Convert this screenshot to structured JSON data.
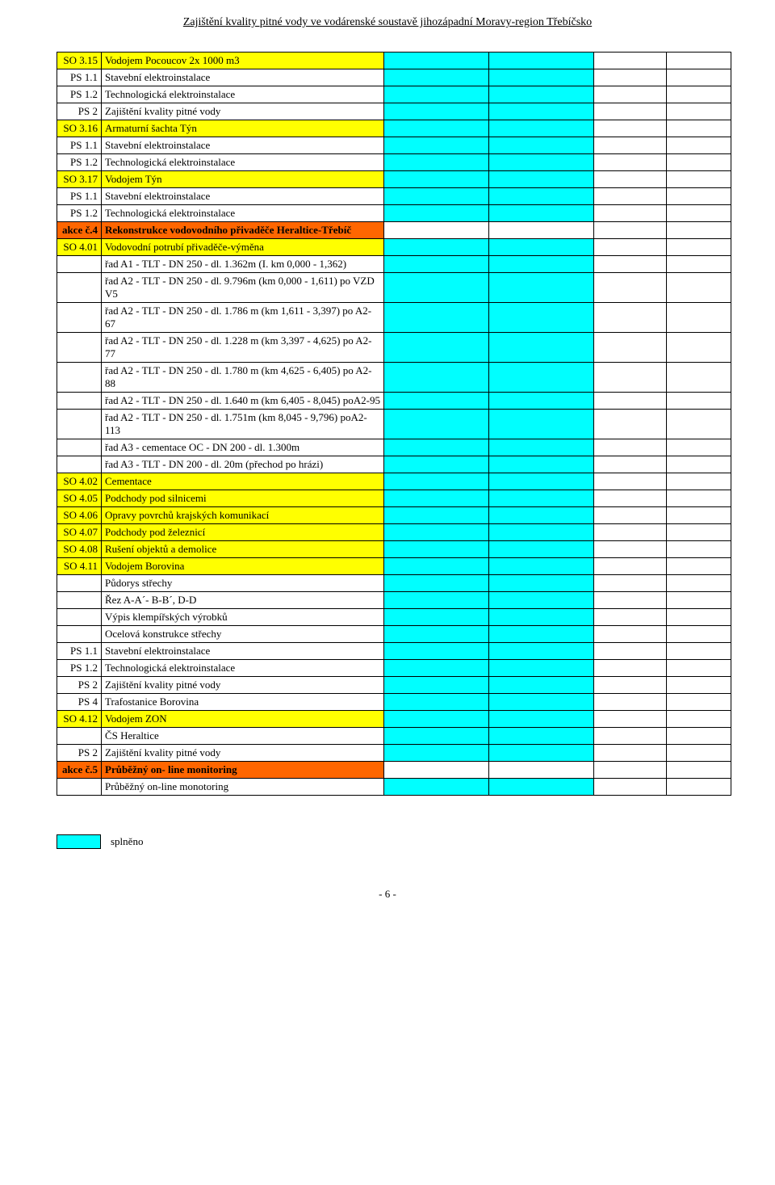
{
  "page_title": "Zajištění kvality pitné vody ve vodárenské soustavě jihozápadní Moravy-region Třebíčsko",
  "page_number": "- 6 -",
  "legend_label": "splněno",
  "colors": {
    "yellow": "#ffff00",
    "orange": "#ff6600",
    "cyan": "#00ffff"
  },
  "rows": [
    {
      "code": "SO 3.15",
      "text": "Vodojem Pocoucov 2x 1000 m3",
      "codeBg": "yellow",
      "textBg": "yellow",
      "marks": [
        "cyan",
        "cyan",
        "",
        ""
      ]
    },
    {
      "code": "PS 1.1",
      "text": "Stavební elektroinstalace",
      "marks": [
        "cyan",
        "cyan",
        "",
        ""
      ]
    },
    {
      "code": "PS 1.2",
      "text": "Technologická elektroinstalace",
      "marks": [
        "cyan",
        "cyan",
        "",
        ""
      ]
    },
    {
      "code": "PS 2",
      "text": "Zajištění kvality pitné vody",
      "marks": [
        "cyan",
        "cyan",
        "",
        ""
      ]
    },
    {
      "code": "SO 3.16",
      "text": "Armaturní šachta Týn",
      "codeBg": "yellow",
      "textBg": "yellow",
      "marks": [
        "cyan",
        "cyan",
        "",
        ""
      ]
    },
    {
      "code": "PS 1.1",
      "text": "Stavební elektroinstalace",
      "marks": [
        "cyan",
        "cyan",
        "",
        ""
      ]
    },
    {
      "code": "PS 1.2",
      "text": "Technologická elektroinstalace",
      "marks": [
        "cyan",
        "cyan",
        "",
        ""
      ]
    },
    {
      "code": "SO 3.17",
      "text": "Vodojem Týn",
      "codeBg": "yellow",
      "textBg": "yellow",
      "marks": [
        "cyan",
        "cyan",
        "",
        ""
      ]
    },
    {
      "code": "PS 1.1",
      "text": "Stavební elektroinstalace",
      "marks": [
        "cyan",
        "cyan",
        "",
        ""
      ]
    },
    {
      "code": "PS 1.2",
      "text": "Technologická elektroinstalace",
      "marks": [
        "cyan",
        "cyan",
        "",
        ""
      ]
    },
    {
      "code": "akce č.4",
      "text": "Rekonstrukce vodovodního přivaděče Heraltice-Třebíč",
      "codeBg": "orange",
      "textBg": "orange",
      "bold": true,
      "marks": [
        "",
        "",
        "",
        ""
      ]
    },
    {
      "code": "SO 4.01",
      "text": "Vodovodní potrubí přivaděče-výměna",
      "codeBg": "yellow",
      "textBg": "yellow",
      "marks": [
        "cyan",
        "cyan",
        "",
        ""
      ]
    },
    {
      "code": "",
      "text": "řad A1 - TLT - DN 250 - dl. 1.362m (I. km 0,000 - 1,362)",
      "marks": [
        "cyan",
        "cyan",
        "",
        ""
      ]
    },
    {
      "code": "",
      "text": "řad A2 - TLT - DN 250 - dl. 9.796m (km 0,000 - 1,611) po VZD V5",
      "marks": [
        "cyan",
        "cyan",
        "",
        ""
      ]
    },
    {
      "code": "",
      "text": "řad A2 - TLT - DN 250 - dl. 1.786 m (km 1,611 - 3,397) po A2-67",
      "marks": [
        "cyan",
        "cyan",
        "",
        ""
      ]
    },
    {
      "code": "",
      "text": "řad A2 - TLT - DN 250 - dl. 1.228 m (km 3,397 - 4,625) po A2-77",
      "marks": [
        "cyan",
        "cyan",
        "",
        ""
      ]
    },
    {
      "code": "",
      "text": "řad A2 - TLT - DN 250 - dl. 1.780 m (km 4,625 - 6,405) po A2-88",
      "marks": [
        "cyan",
        "cyan",
        "",
        ""
      ]
    },
    {
      "code": "",
      "text": "řad A2 - TLT - DN 250 - dl. 1.640 m (km 6,405 - 8,045) poA2-95",
      "marks": [
        "cyan",
        "cyan",
        "",
        ""
      ]
    },
    {
      "code": "",
      "text": "řad A2 - TLT - DN 250 - dl. 1.751m (km 8,045 - 9,796) poA2-113",
      "marks": [
        "cyan",
        "cyan",
        "",
        ""
      ]
    },
    {
      "code": "",
      "text": "řad A3 - cementace OC - DN 200 - dl. 1.300m",
      "marks": [
        "cyan",
        "cyan",
        "",
        ""
      ]
    },
    {
      "code": "",
      "text": "řad A3 - TLT - DN 200 - dl. 20m (přechod po hrázi)",
      "marks": [
        "cyan",
        "cyan",
        "",
        ""
      ]
    },
    {
      "code": "SO 4.02",
      "text": "Cementace",
      "codeBg": "yellow",
      "textBg": "yellow",
      "marks": [
        "cyan",
        "cyan",
        "",
        ""
      ]
    },
    {
      "code": "SO 4.05",
      "text": "Podchody pod silnicemi",
      "codeBg": "yellow",
      "textBg": "yellow",
      "marks": [
        "cyan",
        "cyan",
        "",
        ""
      ]
    },
    {
      "code": "SO 4.06",
      "text": "Opravy povrchů krajských komunikací",
      "codeBg": "yellow",
      "textBg": "yellow",
      "marks": [
        "cyan",
        "cyan",
        "",
        ""
      ]
    },
    {
      "code": "SO 4.07",
      "text": "Podchody pod železnicí",
      "codeBg": "yellow",
      "textBg": "yellow",
      "marks": [
        "cyan",
        "cyan",
        "",
        ""
      ]
    },
    {
      "code": "SO 4.08",
      "text": "Rušení objektů a demolice",
      "codeBg": "yellow",
      "textBg": "yellow",
      "marks": [
        "cyan",
        "cyan",
        "",
        ""
      ]
    },
    {
      "code": "SO 4.11",
      "text": "Vodojem Borovina",
      "codeBg": "yellow",
      "textBg": "yellow",
      "marks": [
        "cyan",
        "cyan",
        "",
        ""
      ]
    },
    {
      "code": "",
      "text": "Půdorys střechy",
      "marks": [
        "cyan",
        "cyan",
        "",
        ""
      ]
    },
    {
      "code": "",
      "text": "Řez A-A´- B-B´, D-D",
      "marks": [
        "cyan",
        "cyan",
        "",
        ""
      ]
    },
    {
      "code": "",
      "text": "Výpis klempířských výrobků",
      "marks": [
        "cyan",
        "cyan",
        "",
        ""
      ]
    },
    {
      "code": "",
      "text": "Ocelová konstrukce střechy",
      "marks": [
        "cyan",
        "cyan",
        "",
        ""
      ]
    },
    {
      "code": "PS 1.1",
      "text": "Stavební elektroinstalace",
      "marks": [
        "cyan",
        "cyan",
        "",
        ""
      ]
    },
    {
      "code": "PS 1.2",
      "text": "Technologická elektroinstalace",
      "marks": [
        "cyan",
        "cyan",
        "",
        ""
      ]
    },
    {
      "code": "PS 2",
      "text": "Zajištění kvality pitné vody",
      "marks": [
        "cyan",
        "cyan",
        "",
        ""
      ]
    },
    {
      "code": "PS 4",
      "text": "Trafostanice Borovina",
      "marks": [
        "cyan",
        "cyan",
        "",
        ""
      ]
    },
    {
      "code": "SO 4.12",
      "text": "Vodojem ZON",
      "codeBg": "yellow",
      "textBg": "yellow",
      "marks": [
        "cyan",
        "cyan",
        "",
        ""
      ]
    },
    {
      "code": "",
      "text": "ČS Heraltice",
      "marks": [
        "cyan",
        "cyan",
        "",
        ""
      ]
    },
    {
      "code": "PS 2",
      "text": "Zajištění kvality pitné vody",
      "marks": [
        "cyan",
        "cyan",
        "",
        ""
      ]
    },
    {
      "code": "akce č.5",
      "text": "Průběžný on- line monitoring",
      "codeBg": "orange",
      "textBg": "orange",
      "bold": true,
      "marks": [
        "",
        "",
        "",
        ""
      ]
    },
    {
      "code": "",
      "text": "Průběžný on-line monotoring",
      "marks": [
        "cyan",
        "cyan",
        "",
        ""
      ]
    }
  ]
}
